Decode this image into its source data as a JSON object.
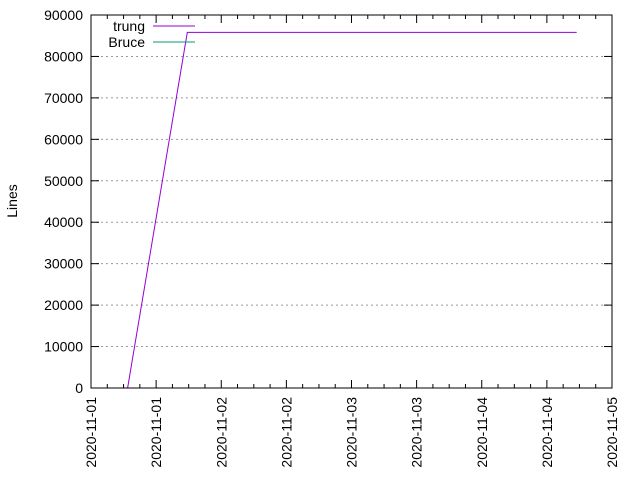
{
  "chart_data": {
    "type": "line",
    "title": "",
    "xlabel": "",
    "ylabel": "Lines",
    "ylim": [
      0,
      90000
    ],
    "yticks": [
      0,
      10000,
      20000,
      30000,
      40000,
      50000,
      60000,
      70000,
      80000,
      90000
    ],
    "xlim": [
      "2020-11-01T00:00",
      "2020-11-05T00:00"
    ],
    "xtick_labels": [
      "2020-11-01",
      "2020-11-01",
      "2020-11-02",
      "2020-11-02",
      "2020-11-03",
      "2020-11-03",
      "2020-11-04",
      "2020-11-04",
      "2020-11-05"
    ],
    "grid": "horizontal dashed",
    "legend_position": "top-left",
    "series": [
      {
        "name": "trung",
        "color": "#9400d3",
        "points": [
          {
            "x": "2020-11-01T06:45",
            "y": 0
          },
          {
            "x": "2020-11-01T17:45",
            "y": 85800
          },
          {
            "x": "2020-11-04T17:30",
            "y": 85800
          }
        ]
      },
      {
        "name": "Bruce",
        "color": "#009e73",
        "points": []
      }
    ]
  }
}
